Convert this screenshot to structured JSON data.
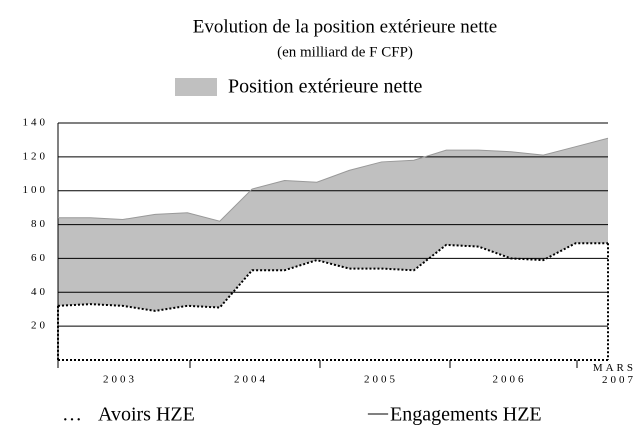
{
  "chart_data": {
    "type": "area",
    "title": "Evolution de la position extérieure nette",
    "subtitle": "(en milliard de F CFP)",
    "area_name": "Position extérieure nette",
    "area_color": "#c0c0c0",
    "x_axis_labels": [
      "2003",
      "2004",
      "2005",
      "2006",
      "MARS 2007"
    ],
    "series": [
      {
        "name": "Avoirs HZE",
        "legend_marker": "…",
        "color": "#000000",
        "values": [
          32,
          33,
          32,
          29,
          32,
          31,
          53,
          53,
          59,
          54,
          54,
          53,
          68,
          67,
          60,
          59,
          69,
          69
        ]
      },
      {
        "name": "Engagements HZE",
        "legend_marker": "—",
        "color": "#000000",
        "values": [
          84,
          84,
          83,
          86,
          87,
          82,
          101,
          106,
          105,
          112,
          117,
          118,
          124,
          124,
          123,
          121,
          126,
          131
        ]
      }
    ],
    "ylim": [
      0,
      140
    ],
    "yticks": [
      20,
      40,
      60,
      80,
      100,
      120,
      140
    ],
    "grid": true
  }
}
